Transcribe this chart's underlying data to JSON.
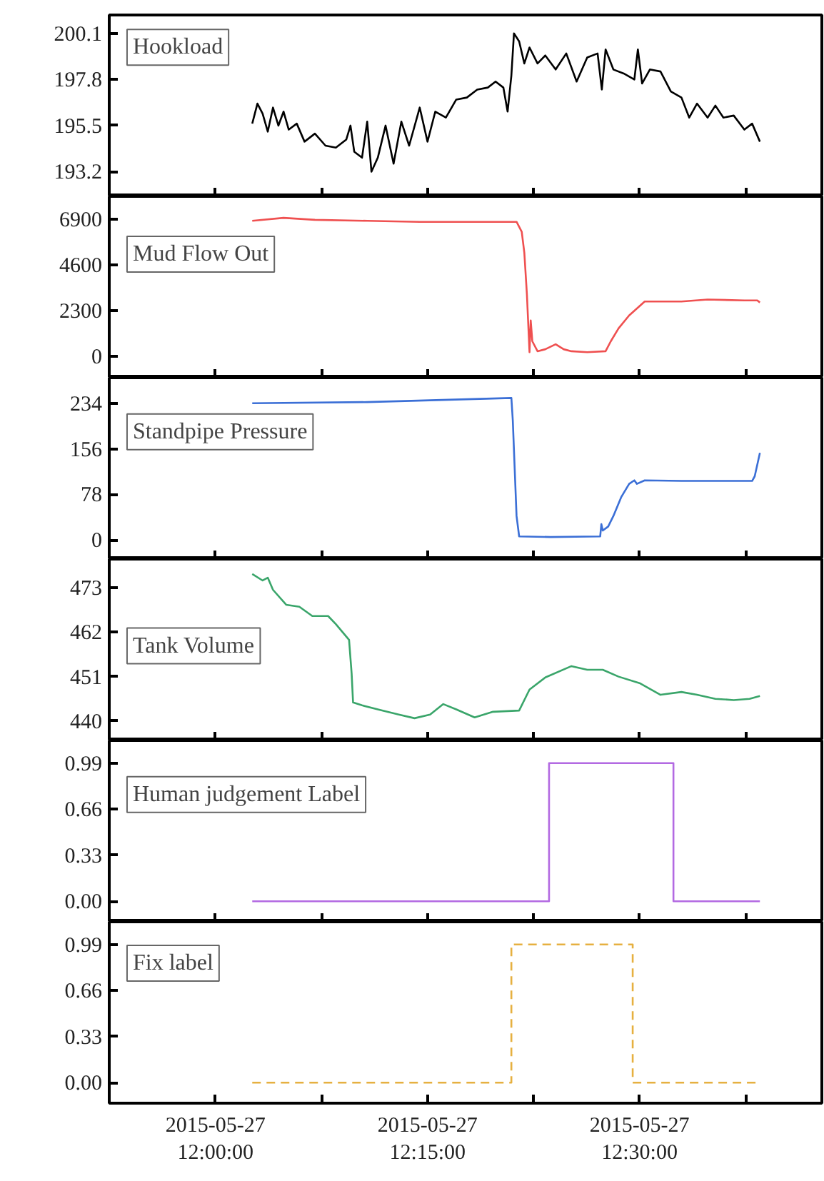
{
  "chart_data": [
    {
      "type": "line",
      "title": "Hookload",
      "color": "#000000",
      "tick_labels": "y",
      "xlim": [
        "2015-05-27T11:52:29",
        "2015-05-27T12:42:54"
      ],
      "ylim": [
        191.97,
        201.02
      ],
      "xticks": [
        {
          "value": "2015-05-27T12:00",
          "label": null
        },
        {
          "value": "2015-05-27T12:07:30",
          "label": null
        },
        {
          "value": "2015-05-27T12:15",
          "label": null
        },
        {
          "value": "2015-05-27T12:22:30",
          "label": null
        },
        {
          "value": "2015-05-27T12:30",
          "label": null
        },
        {
          "value": "2015-05-27T12:37:30",
          "label": null
        }
      ],
      "yticks": [
        193.2,
        195.5,
        197.8,
        200.1
      ],
      "x": [
        "2015-05-27T12:02:36",
        "2015-05-27T12:02:58",
        "2015-05-27T12:03:20",
        "2015-05-27T12:03:42",
        "2015-05-27T12:04:04",
        "2015-05-27T12:04:27",
        "2015-05-27T12:04:49",
        "2015-05-27T12:05:11",
        "2015-05-27T12:05:45",
        "2015-05-27T12:06:18",
        "2015-05-27T12:07:02",
        "2015-05-27T12:07:47",
        "2015-05-27T12:08:31",
        "2015-05-27T12:09:15",
        "2015-05-27T12:09:33",
        "2015-05-27T12:09:49",
        "2015-05-27T12:10:22",
        "2015-05-27T12:10:44",
        "2015-05-27T12:11:02",
        "2015-05-27T12:11:29",
        "2015-05-27T12:12:02",
        "2015-05-27T12:12:36",
        "2015-05-27T12:13:09",
        "2015-05-27T12:13:42",
        "2015-05-27T12:14:27",
        "2015-05-27T12:15:00",
        "2015-05-27T12:15:33",
        "2015-05-27T12:16:18",
        "2015-05-27T12:17:02",
        "2015-05-27T12:17:47",
        "2015-05-27T12:18:31",
        "2015-05-27T12:19:16",
        "2015-05-27T12:19:49",
        "2015-05-27T12:20:22",
        "2015-05-27T12:20:40",
        "2015-05-27T12:20:56",
        "2015-05-27T12:21:07",
        "2015-05-27T12:21:29",
        "2015-05-27T12:21:51",
        "2015-05-27T12:22:13",
        "2015-05-27T12:22:47",
        "2015-05-27T12:23:20",
        "2015-05-27T12:24:04",
        "2015-05-27T12:24:49",
        "2015-05-27T12:25:33",
        "2015-05-27T12:26:18",
        "2015-05-27T12:27:02",
        "2015-05-27T12:27:20",
        "2015-05-27T12:27:36",
        "2015-05-27T12:28:09",
        "2015-05-27T12:28:53",
        "2015-05-27T12:29:38",
        "2015-05-27T12:29:53",
        "2015-05-27T12:30:11",
        "2015-05-27T12:30:44",
        "2015-05-27T12:31:29",
        "2015-05-27T12:32:13",
        "2015-05-27T12:32:58",
        "2015-05-27T12:33:31",
        "2015-05-27T12:34:04",
        "2015-05-27T12:34:49",
        "2015-05-27T12:35:22",
        "2015-05-27T12:35:56",
        "2015-05-27T12:36:40",
        "2015-05-27T12:37:25",
        "2015-05-27T12:37:58",
        "2015-05-27T12:38:31"
      ],
      "values": [
        195.6,
        196.6,
        196.1,
        195.2,
        196.4,
        195.5,
        196.2,
        195.3,
        195.6,
        194.7,
        195.1,
        194.5,
        194.4,
        194.8,
        195.5,
        194.2,
        193.9,
        195.7,
        193.2,
        193.9,
        195.5,
        193.6,
        195.7,
        194.5,
        196.4,
        194.7,
        196.2,
        195.9,
        196.8,
        196.9,
        197.3,
        197.4,
        197.7,
        197.4,
        196.2,
        198.0,
        200.1,
        199.7,
        198.6,
        199.4,
        198.6,
        199.0,
        198.3,
        199.1,
        197.7,
        198.9,
        199.1,
        197.3,
        199.3,
        198.3,
        198.1,
        197.8,
        199.3,
        197.6,
        198.3,
        198.2,
        197.2,
        196.9,
        195.9,
        196.6,
        195.9,
        196.5,
        195.9,
        196.0,
        195.3,
        195.6,
        194.7
      ]
    },
    {
      "type": "line",
      "title": "Mud Flow Out",
      "color": "#ef5050",
      "tick_labels": "y",
      "xlim": [
        "2015-05-27T11:52:29",
        "2015-05-27T12:42:54"
      ],
      "ylim": [
        -1080,
        8030
      ],
      "xticks": [
        {
          "value": "2015-05-27T12:00",
          "label": null
        },
        {
          "value": "2015-05-27T12:07:30",
          "label": null
        },
        {
          "value": "2015-05-27T12:15",
          "label": null
        },
        {
          "value": "2015-05-27T12:22:30",
          "label": null
        },
        {
          "value": "2015-05-27T12:30",
          "label": null
        },
        {
          "value": "2015-05-27T12:37:30",
          "label": null
        }
      ],
      "yticks": [
        0,
        2300,
        4600,
        6900
      ],
      "x": [
        "2015-05-27T12:02:36",
        "2015-05-27T12:04:49",
        "2015-05-27T12:07:02",
        "2015-05-27T12:10:44",
        "2015-05-27T12:14:27",
        "2015-05-27T12:18:29",
        "2015-05-27T12:21:18",
        "2015-05-27T12:21:40",
        "2015-05-27T12:21:51",
        "2015-05-27T12:22:02",
        "2015-05-27T12:22:13",
        "2015-05-27T12:22:18",
        "2015-05-27T12:22:25",
        "2015-05-27T12:22:47",
        "2015-05-27T12:23:20",
        "2015-05-27T12:24:04",
        "2015-05-27T12:24:38",
        "2015-05-27T12:25:11",
        "2015-05-27T12:26:18",
        "2015-05-27T12:27:36",
        "2015-05-27T12:27:58",
        "2015-05-27T12:28:31",
        "2015-05-27T12:29:16",
        "2015-05-27T12:30:22",
        "2015-05-27T12:32:58",
        "2015-05-27T12:34:49",
        "2015-05-27T12:37:25",
        "2015-05-27T12:38:20",
        "2015-05-27T12:38:31"
      ],
      "values": [
        6800,
        6950,
        6850,
        6800,
        6750,
        6750,
        6750,
        6250,
        5200,
        3100,
        200,
        1800,
        750,
        250,
        350,
        600,
        350,
        250,
        200,
        250,
        750,
        1400,
        2050,
        2750,
        2750,
        2850,
        2800,
        2800,
        2700
      ]
    },
    {
      "type": "line",
      "title": "Standpipe Pressure",
      "color": "#3b6fd6",
      "tick_labels": "y",
      "xlim": [
        "2015-05-27T11:52:29",
        "2015-05-27T12:42:54"
      ],
      "ylim": [
        -32.8,
        277.7
      ],
      "xticks": [
        {
          "value": "2015-05-27T12:00",
          "label": null
        },
        {
          "value": "2015-05-27T12:07:30",
          "label": null
        },
        {
          "value": "2015-05-27T12:15",
          "label": null
        },
        {
          "value": "2015-05-27T12:22:30",
          "label": null
        },
        {
          "value": "2015-05-27T12:30",
          "label": null
        },
        {
          "value": "2015-05-27T12:37:30",
          "label": null
        }
      ],
      "yticks": [
        0,
        78,
        156,
        234
      ],
      "x": [
        "2015-05-27T12:02:36",
        "2015-05-27T12:10:44",
        "2015-05-27T12:20:56",
        "2015-05-27T12:21:02",
        "2015-05-27T12:21:18",
        "2015-05-27T12:21:29",
        "2015-05-27T12:23:42",
        "2015-05-27T12:27:13",
        "2015-05-27T12:27:18",
        "2015-05-27T12:27:24",
        "2015-05-27T12:27:47",
        "2015-05-27T12:28:09",
        "2015-05-27T12:28:42",
        "2015-05-27T12:29:16",
        "2015-05-27T12:29:38",
        "2015-05-27T12:29:49",
        "2015-05-27T12:30:22",
        "2015-05-27T12:32:58",
        "2015-05-27T12:37:58",
        "2015-05-27T12:38:09",
        "2015-05-27T12:38:31"
      ],
      "values": [
        234,
        236,
        243,
        205,
        41,
        6,
        5,
        6,
        27,
        16,
        23,
        41,
        73,
        96,
        102,
        96,
        102,
        101,
        101,
        109,
        149
      ]
    },
    {
      "type": "line",
      "title": "Tank Volume",
      "color": "#3aa56a",
      "tick_labels": "y",
      "xlim": [
        "2015-05-27T11:52:29",
        "2015-05-27T12:42:54"
      ],
      "ylim": [
        435.2,
        480.1
      ],
      "xticks": [
        {
          "value": "2015-05-27T12:00",
          "label": null
        },
        {
          "value": "2015-05-27T12:07:30",
          "label": null
        },
        {
          "value": "2015-05-27T12:15",
          "label": null
        },
        {
          "value": "2015-05-27T12:22:30",
          "label": null
        },
        {
          "value": "2015-05-27T12:30",
          "label": null
        },
        {
          "value": "2015-05-27T12:37:30",
          "label": null
        }
      ],
      "yticks": [
        440,
        451,
        462,
        473
      ],
      "x": [
        "2015-05-27T12:02:36",
        "2015-05-27T12:03:20",
        "2015-05-27T12:03:42",
        "2015-05-27T12:04:04",
        "2015-05-27T12:05:00",
        "2015-05-27T12:05:56",
        "2015-05-27T12:06:51",
        "2015-05-27T12:07:58",
        "2015-05-27T12:08:31",
        "2015-05-27T12:09:27",
        "2015-05-27T12:09:38",
        "2015-05-27T12:09:44",
        "2015-05-27T12:10:22",
        "2015-05-27T12:11:29",
        "2015-05-27T12:12:58",
        "2015-05-27T12:14:05",
        "2015-05-27T12:15:11",
        "2015-05-27T12:16:07",
        "2015-05-27T12:17:02",
        "2015-05-27T12:18:20",
        "2015-05-27T12:19:38",
        "2015-05-27T12:21:29",
        "2015-05-27T12:22:13",
        "2015-05-27T12:23:20",
        "2015-05-27T12:25:11",
        "2015-05-27T12:26:18",
        "2015-05-27T12:27:24",
        "2015-05-27T12:28:31",
        "2015-05-27T12:30:00",
        "2015-05-27T12:31:29",
        "2015-05-27T12:32:58",
        "2015-05-27T12:34:04",
        "2015-05-27T12:35:22",
        "2015-05-27T12:36:40",
        "2015-05-27T12:37:47",
        "2015-05-27T12:38:31"
      ],
      "values": [
        476.4,
        474.8,
        475.5,
        472.5,
        468.8,
        468.3,
        466.0,
        466.0,
        464.0,
        460.1,
        451.7,
        444.6,
        443.9,
        442.9,
        441.6,
        440.7,
        441.6,
        444.2,
        442.9,
        440.9,
        442.3,
        442.6,
        447.8,
        450.8,
        453.6,
        452.7,
        452.7,
        451.0,
        449.4,
        446.5,
        447.2,
        446.5,
        445.5,
        445.2,
        445.5,
        446.2
      ]
    },
    {
      "type": "step",
      "title": "Human judgement Label",
      "color": "#b36ae2",
      "tick_labels": "y",
      "xlim": [
        "2015-05-27T11:52:29",
        "2015-05-27T12:42:54"
      ],
      "ylim": [
        -0.147,
        1.152
      ],
      "xticks": [
        {
          "value": "2015-05-27T12:00",
          "label": null
        },
        {
          "value": "2015-05-27T12:07:30",
          "label": null
        },
        {
          "value": "2015-05-27T12:15",
          "label": null
        },
        {
          "value": "2015-05-27T12:22:30",
          "label": null
        },
        {
          "value": "2015-05-27T12:30",
          "label": null
        },
        {
          "value": "2015-05-27T12:37:30",
          "label": null
        }
      ],
      "yticks": [
        {
          "value": 0,
          "label": "0.00"
        },
        0.33,
        0.66,
        0.99
      ],
      "x": [
        "2015-05-27T12:02:36",
        "2015-05-27T12:23:36",
        "2015-05-27T12:32:24",
        "2015-05-27T12:38:31"
      ],
      "values": [
        0,
        0.99,
        0,
        0
      ]
    },
    {
      "type": "step",
      "title": "Fix label",
      "color": "#e6b040",
      "line_style": "dashed",
      "xlim": [
        "2015-05-27T11:52:29",
        "2015-05-27T12:42:54"
      ],
      "ylim": [
        -0.147,
        1.152
      ],
      "xticks": [
        {
          "value": "2015-05-27T12:00",
          "label": "2015-05-27\n12:00:00"
        },
        {
          "value": "2015-05-27T12:07:30",
          "label": null
        },
        {
          "value": "2015-05-27T12:15",
          "label": "2015-05-27\n12:15:00"
        },
        {
          "value": "2015-05-27T12:22:30",
          "label": null
        },
        {
          "value": "2015-05-27T12:30",
          "label": "2015-05-27\n12:30:00"
        },
        {
          "value": "2015-05-27T12:37:30",
          "label": null
        }
      ],
      "yticks": [
        {
          "value": 0,
          "label": "0.00"
        },
        0.33,
        0.66,
        0.99
      ],
      "x": [
        "2015-05-27T12:02:36",
        "2015-05-27T12:20:56",
        "2015-05-27T12:29:31",
        "2015-05-27T12:38:31"
      ],
      "values": [
        0,
        0.99,
        0,
        0
      ]
    }
  ]
}
